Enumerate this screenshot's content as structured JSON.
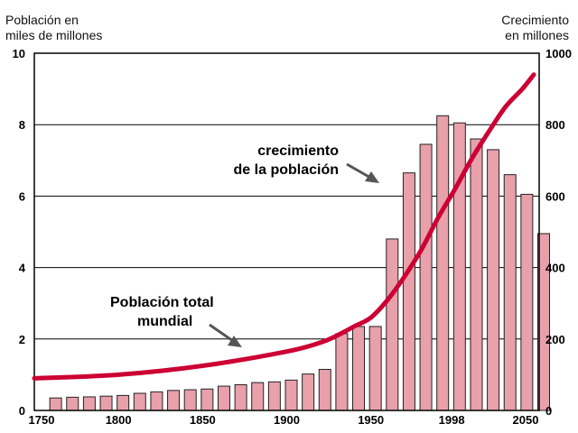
{
  "chart_data": {
    "type": "bar+line",
    "left_axis_label": [
      "Población en",
      "miles de millones"
    ],
    "right_axis_label": [
      "Crecimiento",
      "en millones"
    ],
    "x_ticks": [
      "1750",
      "1800",
      "1850",
      "1900",
      "1950",
      "1998",
      "2050"
    ],
    "left_ticks": [
      "0",
      "2",
      "4",
      "6",
      "8",
      "10"
    ],
    "right_ticks": [
      "0",
      "200",
      "400",
      "600",
      "800",
      "1000"
    ],
    "xlim": [
      1750,
      2050
    ],
    "left_ylim": [
      0,
      10
    ],
    "right_ylim": [
      0,
      1000
    ],
    "grid": true,
    "bars": {
      "name": "crecimiento de la población",
      "units": "millones",
      "x": [
        1760,
        1770,
        1780,
        1790,
        1800,
        1810,
        1820,
        1830,
        1840,
        1850,
        1860,
        1870,
        1880,
        1890,
        1900,
        1910,
        1920,
        1930,
        1940,
        1950,
        1960,
        1970,
        1980,
        1990,
        2000,
        2010,
        2020,
        2030,
        2040,
        2050
      ],
      "values": [
        35,
        37,
        38,
        40,
        42,
        48,
        52,
        56,
        58,
        60,
        68,
        72,
        78,
        80,
        85,
        102,
        115,
        215,
        235,
        235,
        480,
        665,
        745,
        825,
        805,
        760,
        730,
        660,
        605,
        495
      ]
    },
    "line": {
      "name": "Población total mundial",
      "units": "miles de millones",
      "x": [
        1750,
        1800,
        1850,
        1900,
        1920,
        1930,
        1940,
        1950,
        1960,
        1970,
        1980,
        1990,
        2000,
        2010,
        2020,
        2030,
        2040,
        2050
      ],
      "values": [
        0.9,
        1.0,
        1.25,
        1.65,
        1.9,
        2.1,
        2.35,
        2.6,
        3.1,
        3.75,
        4.5,
        5.4,
        6.2,
        7.05,
        7.8,
        8.5,
        9.0,
        9.4
      ]
    },
    "annotations": [
      {
        "text": [
          "crecimiento",
          "de la población"
        ],
        "target": "bars"
      },
      {
        "text": [
          "Población total",
          "mundial"
        ],
        "target": "line"
      }
    ],
    "colors": {
      "bars": "#e8a0aa",
      "bar_edge": "#222222",
      "line": "#cc0033",
      "grid": "#000000"
    }
  }
}
